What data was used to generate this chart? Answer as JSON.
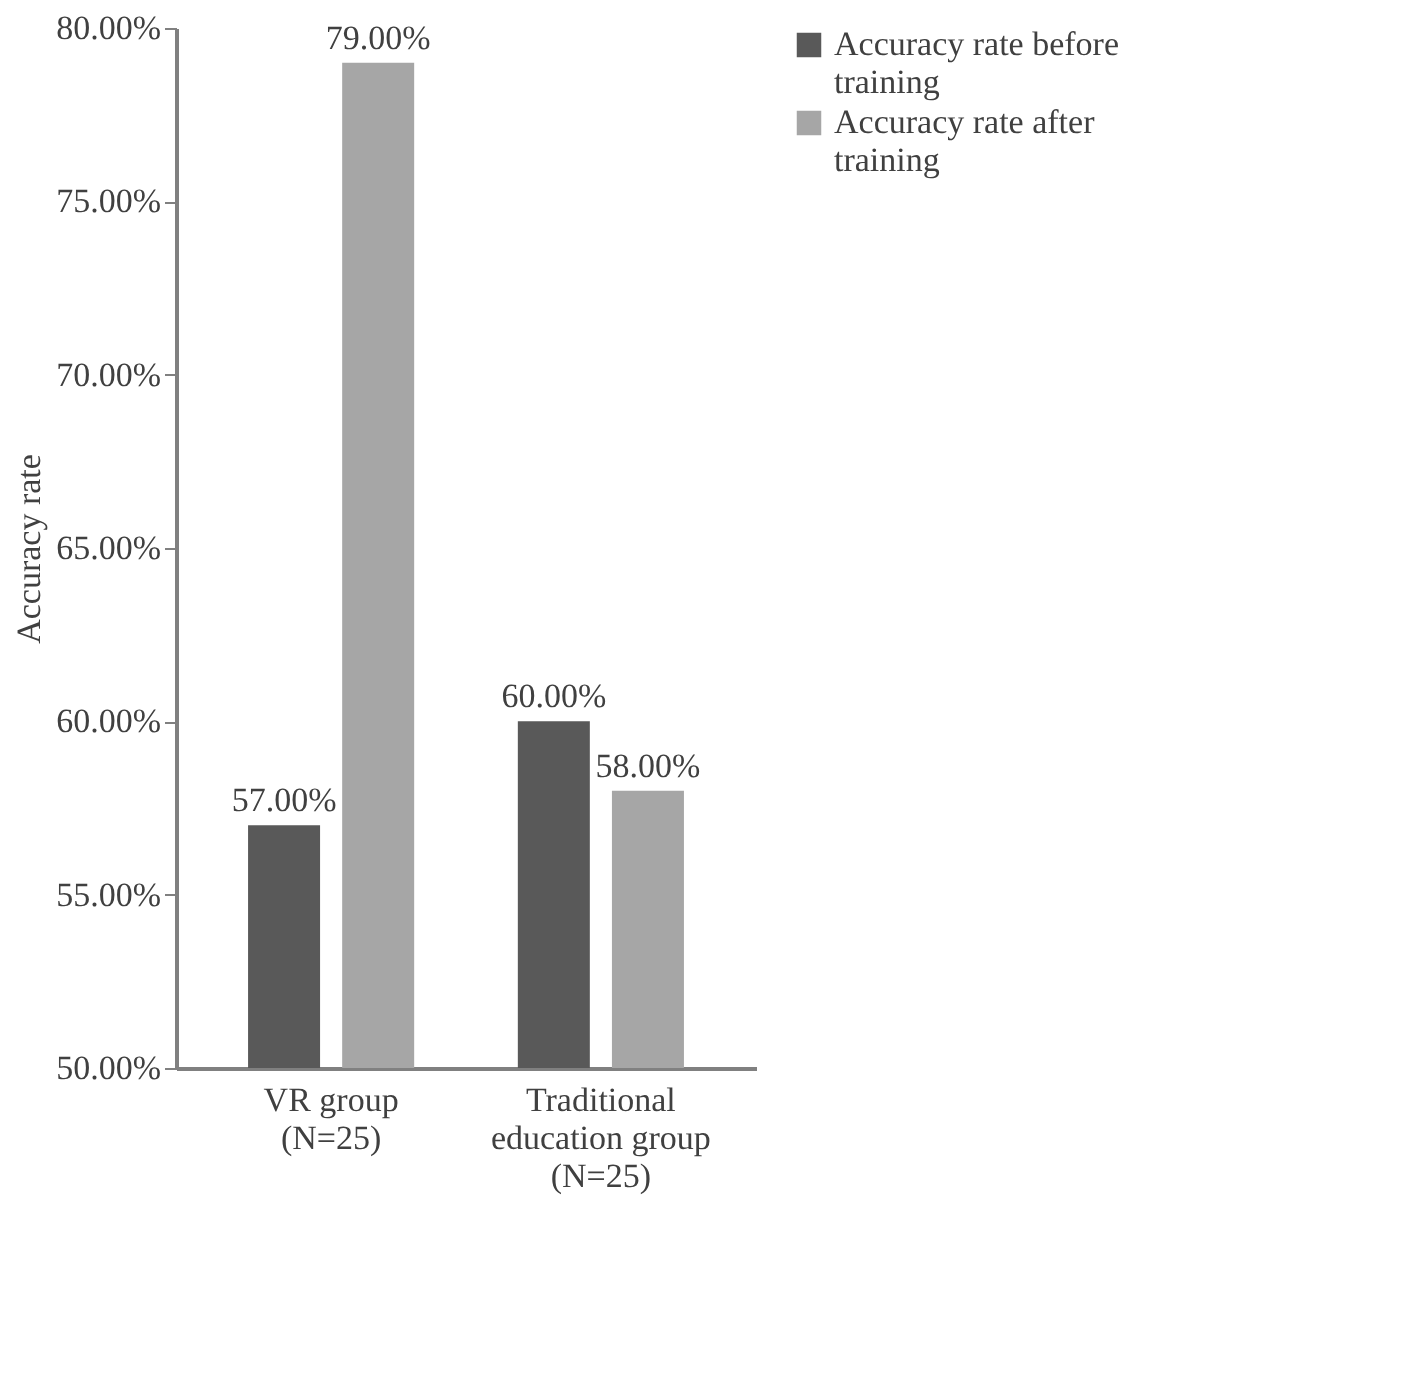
{
  "chart_data": {
    "type": "bar",
    "ylabel": "Accuracy rate",
    "categories": [
      "VR group\n(N=25)",
      "Traditional\neducation group\n(N=25)"
    ],
    "series": [
      {
        "name": "Accuracy rate before\ntraining",
        "color": "#595959",
        "values": [
          57,
          60
        ],
        "value_labels": [
          "57.00%",
          "60.00%"
        ]
      },
      {
        "name": "Accuracy rate after\ntraining",
        "color": "#a6a6a6",
        "values": [
          79,
          58
        ],
        "value_labels": [
          "79.00%",
          "58.00%"
        ]
      }
    ],
    "ylim": [
      50,
      80
    ],
    "yticks": [
      {
        "value": 50,
        "label": "50.00%"
      },
      {
        "value": 55,
        "label": "55.00%"
      },
      {
        "value": 60,
        "label": "60.00%"
      },
      {
        "value": 65,
        "label": "65.00%"
      },
      {
        "value": 70,
        "label": "70.00%"
      },
      {
        "value": 75,
        "label": "75.00%"
      },
      {
        "value": 80,
        "label": "80.00%"
      }
    ],
    "grid": false,
    "legend": "right"
  }
}
